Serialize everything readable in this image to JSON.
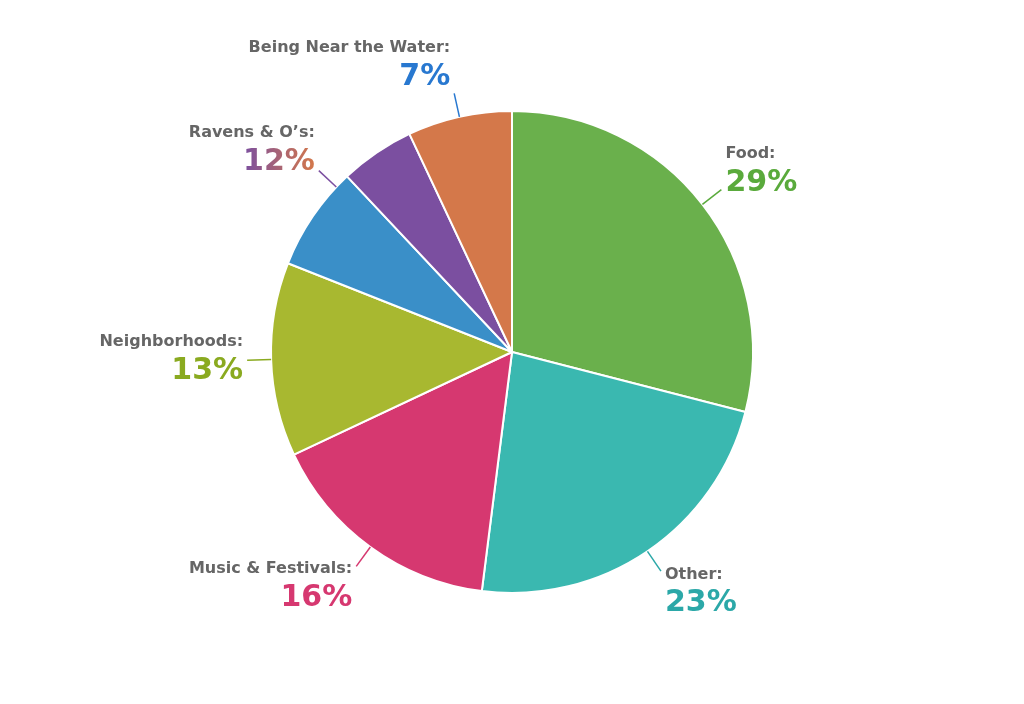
{
  "chart_data": {
    "type": "pie",
    "values": [
      29,
      23,
      16,
      13,
      7,
      5,
      7
    ],
    "colors": [
      "#6ab04c",
      "#3ab8b0",
      "#d63870",
      "#a8b830",
      "#3a8fc8",
      "#7b4fa0",
      "#d4784a"
    ],
    "annotations": [
      {
        "text": "Food:",
        "label": "29%",
        "value": 29,
        "color": "#5aaa3c"
      },
      {
        "text": "Other:",
        "label": "23%",
        "value": 23,
        "color": "#2ba8a8"
      },
      {
        "text": "Music & Festivals:",
        "label": "16%",
        "value": 16,
        "color": "#d63870"
      },
      {
        "text": "Neighborhoods:",
        "label": "13%",
        "value": 13,
        "color": "#8aaa20"
      },
      {
        "text": "Ravens & O’s:",
        "label": "12%",
        "value": 12,
        "colors": [
          "#7b4fa0",
          "#d4784a"
        ]
      },
      {
        "text": "Being Near the Water:",
        "label": "7%",
        "value": 7,
        "color": "#2878d0"
      }
    ]
  }
}
